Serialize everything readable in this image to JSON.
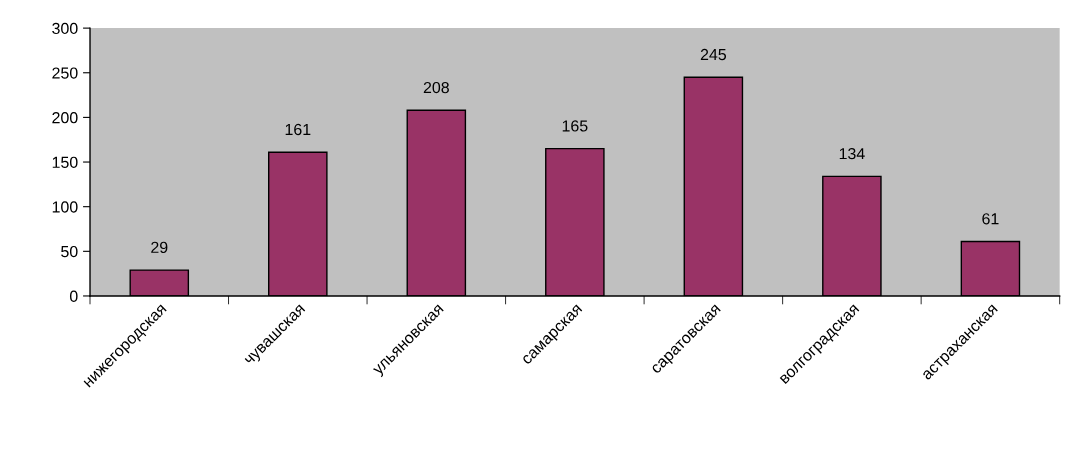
{
  "chart_data": {
    "type": "bar",
    "categories": [
      "нижегородская",
      "чувашская",
      "ульяновская",
      "самарская",
      "саратовская",
      "волгоградская",
      "астраханская"
    ],
    "values": [
      29,
      161,
      208,
      165,
      245,
      134,
      61
    ],
    "color": "#993366",
    "ylim": [
      0,
      300
    ],
    "yticks": [
      0,
      50,
      100,
      150,
      200,
      250,
      300
    ],
    "data_labels": true,
    "grid": false,
    "legend": false
  }
}
